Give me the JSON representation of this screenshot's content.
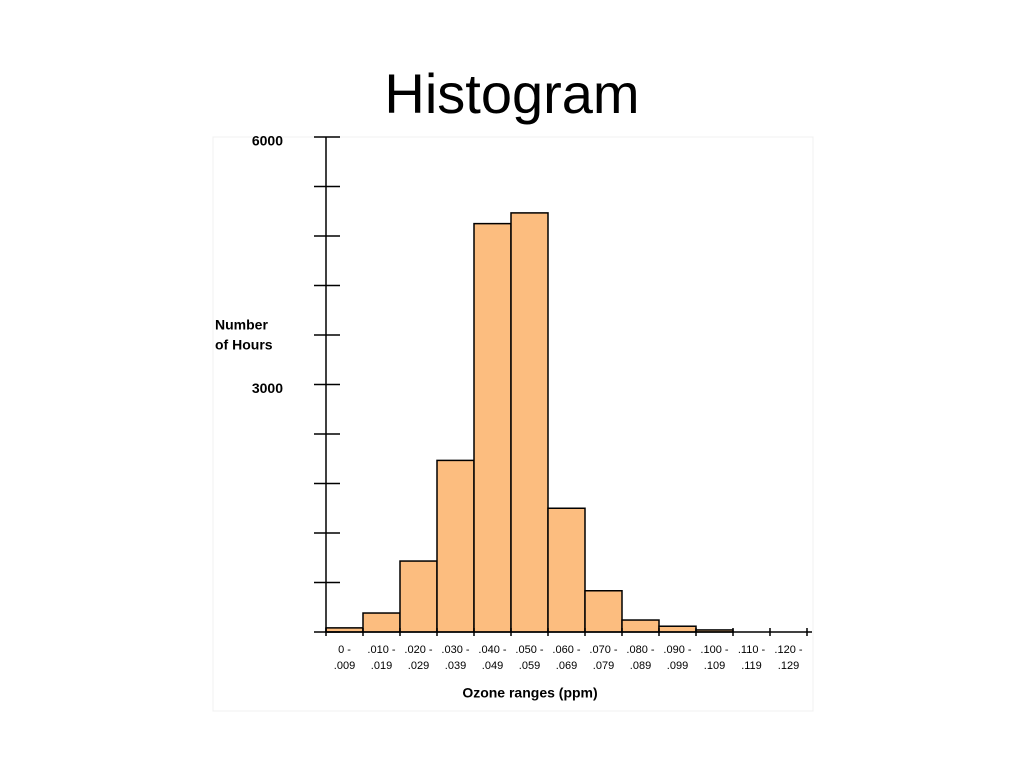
{
  "chart_data": {
    "type": "bar",
    "title": "Histogram",
    "y_label": [
      "Number",
      "of Hours"
    ],
    "x_label": "Ozone ranges (ppm)",
    "categories": [
      [
        "0 -",
        ".009"
      ],
      [
        ".010 -",
        ".019"
      ],
      [
        ".020 -",
        ".029"
      ],
      [
        ".030 -",
        ".039"
      ],
      [
        ".040 -",
        ".049"
      ],
      [
        ".050 -",
        ".059"
      ],
      [
        ".060 -",
        ".069"
      ],
      [
        ".070 -",
        ".079"
      ],
      [
        ".080 -",
        ".089"
      ],
      [
        ".090 -",
        ".099"
      ],
      [
        ".100 -",
        ".109"
      ],
      [
        ".110 -",
        ".119"
      ],
      [
        ".120 -",
        ".129"
      ]
    ],
    "values": [
      50,
      230,
      860,
      2080,
      4950,
      5080,
      1500,
      500,
      145,
      70,
      25,
      0,
      0
    ],
    "color": "#fcbd7f",
    "ylim": [
      0,
      6000
    ],
    "yticks": [
      3000,
      6000
    ],
    "minor_yticks": [
      0,
      600,
      1200,
      1800,
      2400,
      3000,
      3600,
      4200,
      4800,
      5400,
      6000
    ]
  }
}
